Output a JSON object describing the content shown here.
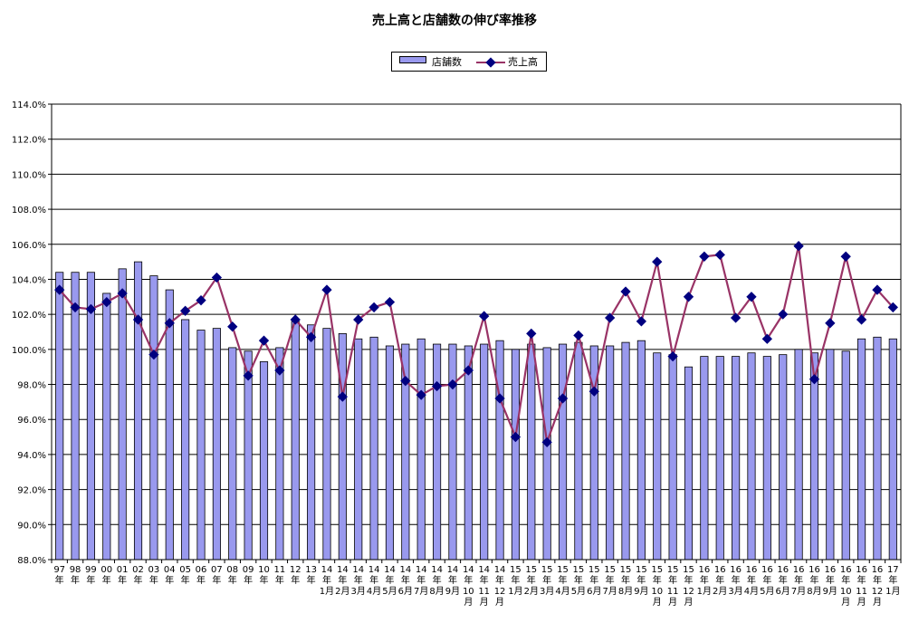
{
  "chart_data": {
    "type": "bar+line",
    "title": "売上高と店舗数の伸び率推移",
    "legend": {
      "placement": "top-center",
      "items": [
        "店舗数",
        "売上高"
      ]
    },
    "grid": true,
    "ylim": [
      88.0,
      114.0
    ],
    "ytick_labels": [
      "88.0%",
      "90.0%",
      "92.0%",
      "94.0%",
      "96.0%",
      "98.0%",
      "100.0%",
      "102.0%",
      "104.0%",
      "106.0%",
      "108.0%",
      "110.0%",
      "112.0%",
      "114.0%"
    ],
    "ytick_values": [
      88,
      90,
      92,
      94,
      96,
      98,
      100,
      102,
      104,
      106,
      108,
      110,
      112,
      114
    ],
    "categories": [
      "97年",
      "98年",
      "99年",
      "00年",
      "01年",
      "02年",
      "03年",
      "04年",
      "05年",
      "06年",
      "07年",
      "08年",
      "09年",
      "10年",
      "11年",
      "12年",
      "13年",
      "14年1月",
      "14年2月",
      "14年3月",
      "14年4月",
      "14年5月",
      "14年6月",
      "14年7月",
      "14年8月",
      "14年9月",
      "14年10月",
      "14年11月",
      "14年12月",
      "15年1月",
      "15年2月",
      "15年3月",
      "15年4月",
      "15年5月",
      "15年6月",
      "15年7月",
      "15年8月",
      "15年9月",
      "15年10月",
      "15年11月",
      "15年12月",
      "16年1月",
      "16年2月",
      "16年3月",
      "16年4月",
      "16年5月",
      "16年6月",
      "16年7月",
      "16年8月",
      "16年9月",
      "16年10月",
      "16年11月",
      "16年12月",
      "17年1月"
    ],
    "xtick_lines": [
      [
        "97",
        "年"
      ],
      [
        "98",
        "年"
      ],
      [
        "99",
        "年"
      ],
      [
        "00",
        "年"
      ],
      [
        "01",
        "年"
      ],
      [
        "02",
        "年"
      ],
      [
        "03",
        "年"
      ],
      [
        "04",
        "年"
      ],
      [
        "05",
        "年"
      ],
      [
        "06",
        "年"
      ],
      [
        "07",
        "年"
      ],
      [
        "08",
        "年"
      ],
      [
        "09",
        "年"
      ],
      [
        "10",
        "年"
      ],
      [
        "11",
        "年"
      ],
      [
        "12",
        "年"
      ],
      [
        "13",
        "年"
      ],
      [
        "14",
        "年",
        "1月"
      ],
      [
        "14",
        "年",
        "2月"
      ],
      [
        "14",
        "年",
        "3月"
      ],
      [
        "14",
        "年",
        "4月"
      ],
      [
        "14",
        "年",
        "5月"
      ],
      [
        "14",
        "年",
        "6月"
      ],
      [
        "14",
        "年",
        "7月"
      ],
      [
        "14",
        "年",
        "8月"
      ],
      [
        "14",
        "年",
        "9月"
      ],
      [
        "14",
        "年",
        "10",
        "月"
      ],
      [
        "14",
        "年",
        "11",
        "月"
      ],
      [
        "14",
        "年",
        "12",
        "月"
      ],
      [
        "15",
        "年",
        "1月"
      ],
      [
        "15",
        "年",
        "2月"
      ],
      [
        "15",
        "年",
        "3月"
      ],
      [
        "15",
        "年",
        "4月"
      ],
      [
        "15",
        "年",
        "5月"
      ],
      [
        "15",
        "年",
        "6月"
      ],
      [
        "15",
        "年",
        "7月"
      ],
      [
        "15",
        "年",
        "8月"
      ],
      [
        "15",
        "年",
        "9月"
      ],
      [
        "15",
        "年",
        "10",
        "月"
      ],
      [
        "15",
        "年",
        "11",
        "月"
      ],
      [
        "15",
        "年",
        "12",
        "月"
      ],
      [
        "16",
        "年",
        "1月"
      ],
      [
        "16",
        "年",
        "2月"
      ],
      [
        "16",
        "年",
        "3月"
      ],
      [
        "16",
        "年",
        "4月"
      ],
      [
        "16",
        "年",
        "5月"
      ],
      [
        "16",
        "年",
        "6月"
      ],
      [
        "16",
        "年",
        "7月"
      ],
      [
        "16",
        "年",
        "8月"
      ],
      [
        "16",
        "年",
        "9月"
      ],
      [
        "16",
        "年",
        "10",
        "月"
      ],
      [
        "16",
        "年",
        "11",
        "月"
      ],
      [
        "16",
        "年",
        "12",
        "月"
      ],
      [
        "17",
        "年",
        "1月"
      ]
    ],
    "series": [
      {
        "name": "店舗数",
        "type": "bar",
        "color": "#9999ee",
        "values": [
          104.4,
          104.4,
          104.4,
          103.2,
          104.6,
          105.0,
          104.2,
          103.4,
          101.7,
          101.1,
          101.2,
          100.1,
          99.9,
          99.3,
          100.1,
          101.6,
          101.4,
          101.2,
          100.9,
          100.6,
          100.7,
          100.2,
          100.3,
          100.6,
          100.3,
          100.3,
          100.2,
          100.3,
          100.5,
          100.0,
          100.3,
          100.1,
          100.3,
          100.4,
          100.2,
          100.2,
          100.4,
          100.5,
          99.8,
          99.7,
          99.0,
          99.6,
          99.6,
          99.6,
          99.8,
          99.6,
          99.7,
          100.0,
          99.8,
          100.0,
          99.9,
          100.6,
          100.7,
          100.6
        ]
      },
      {
        "name": "売上高",
        "type": "line",
        "color": "#993366",
        "marker_color": "#000080",
        "values": [
          103.4,
          102.4,
          102.3,
          102.7,
          103.2,
          101.7,
          99.7,
          101.5,
          102.2,
          102.8,
          104.1,
          101.3,
          98.5,
          100.5,
          98.8,
          101.7,
          100.7,
          103.4,
          97.3,
          101.7,
          102.4,
          102.7,
          98.2,
          97.4,
          97.9,
          98.0,
          98.8,
          101.9,
          97.2,
          95.0,
          100.9,
          94.7,
          97.2,
          100.8,
          97.6,
          101.8,
          103.3,
          101.6,
          105.0,
          99.6,
          103.0,
          105.3,
          105.4,
          101.8,
          103.0,
          100.6,
          102.0,
          105.9,
          98.3,
          101.5,
          105.3,
          101.7,
          103.4,
          102.4
        ]
      }
    ]
  }
}
